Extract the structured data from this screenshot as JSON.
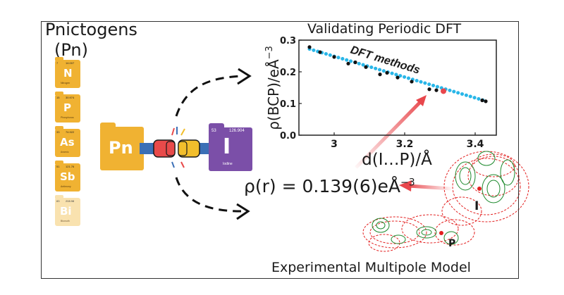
{
  "header": {
    "pnictogens_line1": "Pnictogens",
    "pnictogens_line2": "(Pn)"
  },
  "pnictogen_tiles": [
    {
      "number": "7",
      "mass": "14.007",
      "symbol": "N",
      "name": "Nitrogen"
    },
    {
      "number": "15",
      "mass": "30.974",
      "symbol": "P",
      "name": "Phosphorus"
    },
    {
      "number": "33",
      "mass": "74.922",
      "symbol": "As",
      "name": "Arsenic"
    },
    {
      "number": "51",
      "mass": "121.76",
      "symbol": "Sb",
      "name": "Antimony"
    },
    {
      "number": "83",
      "mass": "208.98",
      "symbol": "Bi",
      "name": "Bismuth"
    }
  ],
  "pn_tile": {
    "symbol": "Pn"
  },
  "iodine_tile": {
    "number": "53",
    "mass": "126.904",
    "symbol": "I",
    "name": "Iodine"
  },
  "chart_title": "Validating Periodic DFT",
  "chart_annotation": "DFT methods",
  "density_value": "ρ(r) = 0.139(6)eÅ",
  "density_exponent": "−3",
  "experimental_label": "Experimental Multipole Model",
  "map_labels": {
    "iodine": "I",
    "phosphorus": "P"
  },
  "colors": {
    "tile_gold": "#F0B232",
    "tile_gold_light": "#F8DDA2",
    "iodine_purple": "#7B4FA8",
    "fit_line": "#29B6E8",
    "highlight_point": "#E8474C",
    "contour_green": "#1E8A2E",
    "contour_red": "#E32020"
  },
  "chart_data": {
    "type": "scatter",
    "title": "Validating Periodic DFT",
    "xlabel": "d(I…P)/Å",
    "ylabel": "ρ(BCP)/eÅ",
    "ylabel_exponent": "−3",
    "xlim": [
      2.9,
      3.46
    ],
    "ylim": [
      0.0,
      0.3
    ],
    "xticks": [
      "3",
      "3.2",
      "3.4"
    ],
    "yticks": [
      "0.0",
      "0.1",
      "0.2",
      "0.3"
    ],
    "annotation": "DFT methods",
    "series": [
      {
        "values": [
          {
            "x": 2.93,
            "y": 0.278
          },
          {
            "x": 2.96,
            "y": 0.262
          },
          {
            "x": 3.0,
            "y": 0.247
          },
          {
            "x": 3.04,
            "y": 0.226
          },
          {
            "x": 3.06,
            "y": 0.23
          },
          {
            "x": 3.09,
            "y": 0.215
          },
          {
            "x": 3.13,
            "y": 0.192
          },
          {
            "x": 3.15,
            "y": 0.197
          },
          {
            "x": 3.18,
            "y": 0.182
          },
          {
            "x": 3.22,
            "y": 0.169
          },
          {
            "x": 3.27,
            "y": 0.145
          },
          {
            "x": 3.29,
            "y": 0.142
          },
          {
            "x": 3.42,
            "y": 0.11
          },
          {
            "x": 3.43,
            "y": 0.107
          }
        ]
      }
    ],
    "fit_line": {
      "x": [
        2.93,
        3.43
      ],
      "y": [
        0.272,
        0.108
      ]
    },
    "highlight_point": {
      "x": 3.31,
      "y": 0.139
    }
  }
}
